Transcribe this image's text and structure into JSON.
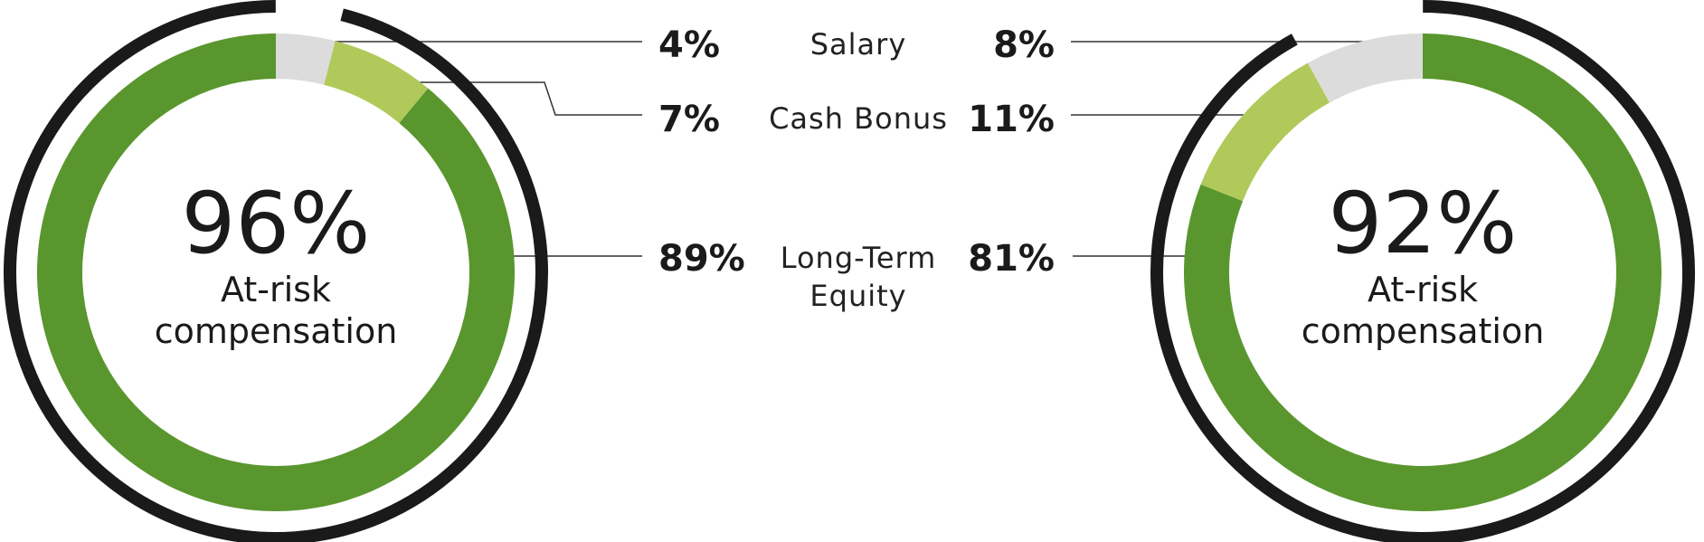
{
  "chart_data": {
    "type": "donut",
    "categories": [
      "Salary",
      "Cash Bonus",
      "Long-Term Equity"
    ],
    "colors": [
      "#dcdcdc",
      "#b0c95a",
      "#5a962e"
    ],
    "ring_color": "#1a1a1a",
    "series": [
      {
        "values": [
          4,
          7,
          89
        ],
        "value_labels": [
          "4%",
          "7%",
          "89%"
        ],
        "direction": "clockwise",
        "at_risk": {
          "value": 96,
          "label": "96%"
        },
        "at_risk_label": "At-risk compensation"
      },
      {
        "values": [
          8,
          11,
          81
        ],
        "value_labels": [
          "8%",
          "11%",
          "81%"
        ],
        "direction": "counterclockwise",
        "at_risk": {
          "value": 92,
          "label": "92%"
        },
        "at_risk_label": "At-risk compensation"
      }
    ]
  }
}
